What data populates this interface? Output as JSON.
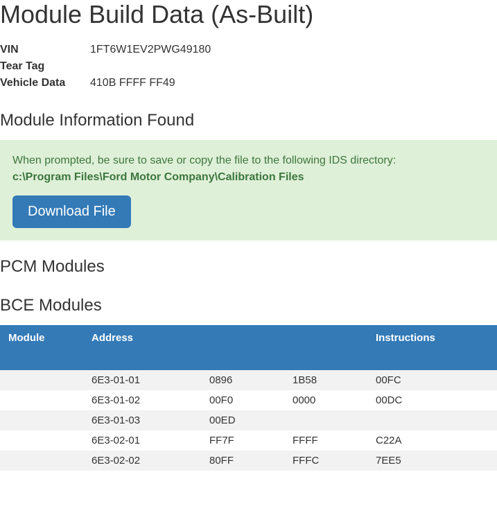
{
  "page_title": "Module Build Data (As-Built)",
  "vehicle_info": {
    "rows": [
      {
        "label": "VIN",
        "value": "1FT6W1EV2PWG49180"
      },
      {
        "label": "Tear Tag",
        "value": ""
      },
      {
        "label": "Vehicle Data",
        "value": "410B FFFF FF49"
      }
    ]
  },
  "module_info_heading": "Module Information Found",
  "alert": {
    "text": "When prompted, be sure to save or copy the file to the following IDS directory:",
    "path": "c:\\Program Files\\Ford Motor Company\\Calibration Files",
    "button_label": "Download File"
  },
  "pcm_heading": "PCM Modules",
  "bce_heading": "BCE Modules",
  "bce_table": {
    "columns": {
      "module": "Module",
      "address": "Address",
      "blank1": "",
      "blank2": "",
      "instructions": "Instructions"
    },
    "rows": [
      {
        "module": "",
        "address": "6E3-01-01",
        "v1": "0896",
        "v2": "1B58",
        "instr": "00FC"
      },
      {
        "module": "",
        "address": "6E3-01-02",
        "v1": "00F0",
        "v2": "0000",
        "instr": "00DC"
      },
      {
        "module": "",
        "address": "6E3-01-03",
        "v1": "00ED",
        "v2": "",
        "instr": ""
      },
      {
        "module": "",
        "address": "6E3-02-01",
        "v1": "FF7F",
        "v2": "FFFF",
        "instr": "C22A"
      },
      {
        "module": "",
        "address": "6E3-02-02",
        "v1": "80FF",
        "v2": "FFFC",
        "instr": "7EE5"
      }
    ]
  },
  "colors": {
    "header_blue": "#337ab7",
    "alert_green_bg": "#dff0d8",
    "alert_green_text": "#3c763d",
    "row_stripe": "#f2f2f2"
  }
}
